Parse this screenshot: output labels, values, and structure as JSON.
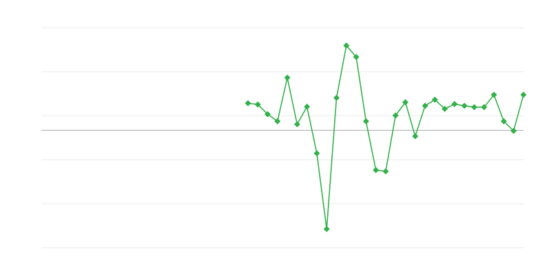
{
  "chart_data": {
    "type": "line",
    "title": "",
    "xlabel": "",
    "ylabel": "",
    "grid": true,
    "legend": "none",
    "xlim": [
      -21,
      28
    ],
    "ylim": [
      -2.67,
      2.33
    ],
    "gridlines_y": [
      2.33,
      1.33,
      0.33,
      -0.67,
      -1.67,
      -2.67
    ],
    "zero_line": 0,
    "x": [
      0,
      1,
      2,
      3,
      4,
      5,
      6,
      7,
      8,
      9,
      10,
      11,
      12,
      13,
      14,
      15,
      16,
      17,
      18,
      19,
      20,
      21,
      22,
      23,
      24,
      25,
      26,
      27,
      28
    ],
    "series": [
      {
        "color": "#33b04a",
        "marker": "diamond",
        "values": [
          0.61,
          0.58,
          0.36,
          0.2,
          1.19,
          0.13,
          0.53,
          -0.53,
          -2.25,
          0.73,
          1.92,
          1.66,
          0.2,
          -0.91,
          -0.94,
          0.33,
          0.63,
          -0.14,
          0.55,
          0.69,
          0.48,
          0.59,
          0.55,
          0.52,
          0.52,
          0.8,
          0.2,
          -0.02,
          0.8
        ]
      }
    ],
    "colors": {
      "grid": "#ebebeb",
      "zero_line": "#aaaaaa"
    }
  }
}
